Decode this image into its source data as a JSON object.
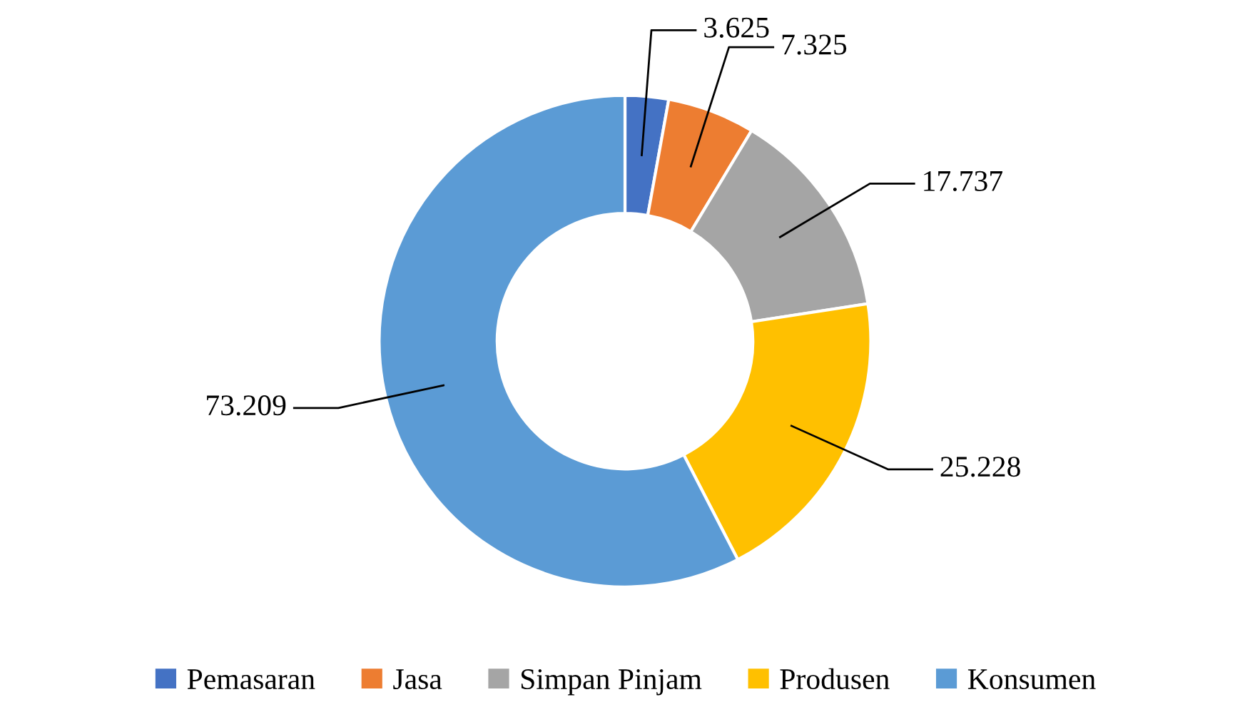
{
  "chart_data": {
    "type": "donut",
    "categories": [
      "Pemasaran",
      "Jasa",
      "Simpan Pinjam",
      "Produsen",
      "Konsumen"
    ],
    "values": [
      3625,
      7325,
      17737,
      25228,
      73209
    ],
    "value_labels": [
      "3.625",
      "7.325",
      "17.737",
      "25.228",
      "73.209"
    ],
    "colors": [
      "#4472c4",
      "#ed7d31",
      "#a5a5a5",
      "#ffc000",
      "#5b9bd5"
    ],
    "legend": "bottom"
  }
}
